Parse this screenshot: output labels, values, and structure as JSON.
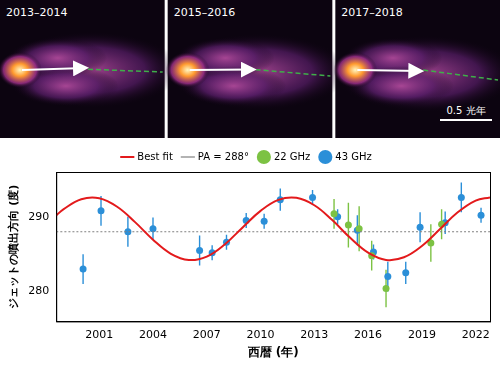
{
  "images": {
    "panels": [
      "2013–2014",
      "2015–2016",
      "2017–2018"
    ],
    "scale_bar": "0.5 光年"
  },
  "chart_data": {
    "type": "scatter",
    "x_label": "西暦 (年)",
    "y_label": "ジェットの噴出方向 (度)",
    "xlim": [
      1998.6,
      2022.8
    ],
    "ylim": [
      276,
      296
    ],
    "xticks": [
      2001,
      2004,
      2007,
      2010,
      2013,
      2016,
      2019,
      2022
    ],
    "yticks": [
      280,
      290
    ],
    "grid": false,
    "legend": "top",
    "series": [
      {
        "name": "Best fit",
        "type": "line",
        "color": "#e31a1c",
        "line_style": "solid",
        "x": [
          1998.6,
          1999,
          2000,
          2001,
          2002,
          2003,
          2004,
          2005,
          2006,
          2007,
          2008,
          2009,
          2010,
          2011,
          2012,
          2013,
          2014,
          2015,
          2016,
          2017,
          2018,
          2019,
          2020,
          2021,
          2022,
          2022.8
        ],
        "values": [
          290.18,
          291.0,
          292.36,
          292.49,
          291.35,
          289.29,
          286.94,
          285.05,
          284.22,
          284.68,
          286.3,
          288.58,
          290.8,
          292.27,
          292.54,
          291.55,
          289.56,
          287.19,
          285.2,
          284.23,
          284.58,
          286.09,
          288.34,
          290.61,
          292.18,
          292.6
        ]
      },
      {
        "name": "PA = 288°",
        "type": "line",
        "color": "#808080",
        "line_style": "dotted",
        "x": [
          1998.6,
          2022.8
        ],
        "values": [
          288,
          288
        ]
      },
      {
        "name": "22 GHz",
        "type": "scatter",
        "color": "#7cc243",
        "marker": "circle",
        "x": [
          2014.1,
          2014.9,
          2015.5,
          2016.2,
          2017.0,
          2019.5,
          2020.1
        ],
        "values": [
          290.4,
          288.9,
          288.4,
          284.8,
          280.4,
          286.5,
          289.0
        ],
        "errors": [
          2,
          3,
          3,
          2,
          2.5,
          2.5,
          2
        ]
      },
      {
        "name": "43 GHz",
        "type": "scatter",
        "color": "#2b8fd8",
        "marker": "circle",
        "x": [
          2000.1,
          2001.1,
          2002.6,
          2004.0,
          2006.6,
          2007.3,
          2008.1,
          2009.2,
          2010.2,
          2011.1,
          2012.9,
          2014.3,
          2015.4,
          2016.3,
          2017.1,
          2018.1,
          2018.9,
          2020.3,
          2021.2,
          2022.3
        ],
        "values": [
          283.0,
          290.8,
          288.0,
          288.4,
          285.5,
          285.2,
          286.6,
          289.5,
          289.4,
          292.3,
          292.6,
          290.0,
          288.2,
          285.3,
          282.0,
          282.5,
          288.6,
          289.2,
          292.6,
          290.2
        ],
        "errors": [
          2,
          2,
          2,
          1.5,
          2,
          1,
          1,
          1,
          1,
          1.5,
          1,
          1,
          2,
          1,
          2,
          1.5,
          2,
          1.5,
          2,
          1
        ]
      }
    ]
  }
}
